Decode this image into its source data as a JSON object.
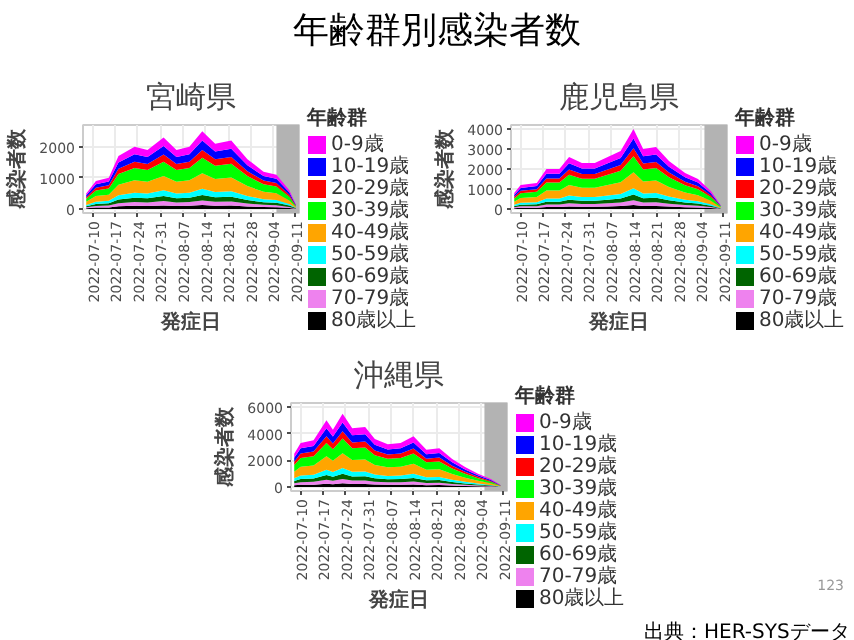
{
  "chart_data": [
    {
      "type": "other",
      "title": "年齢群別感染者数",
      "annotations": [
        "出典：HER-SYSデータ",
        "123"
      ]
    },
    {
      "type": "area",
      "stacked": true,
      "title": "宮崎県",
      "xlabel": "発症日",
      "ylabel": "感染者数",
      "legend_title": "年齢群",
      "legend": "right",
      "grid": true,
      "x": [
        "2022-07-08",
        "2022-07-11",
        "2022-07-15",
        "2022-07-18",
        "2022-07-23",
        "2022-07-27",
        "2022-08-01",
        "2022-08-05",
        "2022-08-09",
        "2022-08-13",
        "2022-08-17",
        "2022-08-22",
        "2022-08-27",
        "2022-09-01",
        "2022-09-05",
        "2022-09-09",
        "2022-09-11"
      ],
      "xlim": [
        "2022-07-07",
        "2022-09-12"
      ],
      "xticks": [
        "2022-07-10",
        "2022-07-17",
        "2022-07-24",
        "2022-07-31",
        "2022-08-07",
        "2022-08-14",
        "2022-08-21",
        "2022-08-28",
        "2022-09-04",
        "2022-09-11"
      ],
      "ylim": [
        -130,
        2700
      ],
      "yticks": [
        0,
        1000,
        2000
      ],
      "bands": [
        {
          "axis": "x",
          "from": "2022-09-05",
          "to": "2022-09-12",
          "color": "#b3b3b3"
        }
      ],
      "series": [
        {
          "name": "80歳以上",
          "color": "#000000",
          "values": [
            25,
            45,
            50,
            85,
            100,
            95,
            115,
            95,
            100,
            125,
            105,
            110,
            80,
            60,
            55,
            30,
            8
          ]
        },
        {
          "name": "70-79歳",
          "color": "#ee82ee",
          "values": [
            30,
            54,
            60,
            102,
            120,
            114,
            138,
            114,
            120,
            150,
            126,
            132,
            96,
            72,
            66,
            36,
            9
          ]
        },
        {
          "name": "60-69歳",
          "color": "#006400",
          "values": [
            35,
            63,
            70,
            119,
            140,
            133,
            161,
            133,
            140,
            175,
            147,
            154,
            112,
            84,
            77,
            42,
            10
          ]
        },
        {
          "name": "50-59歳",
          "color": "#00ffff",
          "values": [
            40,
            72,
            80,
            136,
            160,
            152,
            184,
            152,
            160,
            200,
            168,
            176,
            128,
            96,
            88,
            48,
            12
          ]
        },
        {
          "name": "40-49歳",
          "color": "#ffa500",
          "values": [
            100,
            180,
            200,
            340,
            400,
            380,
            460,
            380,
            400,
            500,
            420,
            440,
            320,
            240,
            220,
            120,
            30
          ]
        },
        {
          "name": "30-39歳",
          "color": "#00ff00",
          "values": [
            100,
            180,
            200,
            340,
            400,
            380,
            460,
            380,
            400,
            500,
            420,
            440,
            320,
            240,
            220,
            120,
            30
          ]
        },
        {
          "name": "20-29歳",
          "color": "#ff0000",
          "values": [
            50,
            90,
            100,
            170,
            200,
            190,
            230,
            190,
            200,
            250,
            210,
            220,
            160,
            120,
            110,
            60,
            15
          ]
        },
        {
          "name": "10-19歳",
          "color": "#0000ff",
          "values": [
            60,
            108,
            120,
            204,
            240,
            228,
            276,
            228,
            240,
            300,
            252,
            264,
            192,
            144,
            132,
            72,
            18
          ]
        },
        {
          "name": "0-9歳",
          "color": "#ff00ff",
          "values": [
            60,
            108,
            120,
            204,
            240,
            228,
            276,
            228,
            240,
            300,
            252,
            264,
            192,
            144,
            132,
            72,
            18
          ]
        }
      ]
    },
    {
      "type": "area",
      "stacked": true,
      "title": "鹿児島県",
      "xlabel": "発症日",
      "ylabel": "感染者数",
      "legend_title": "年齢群",
      "legend": "right",
      "grid": true,
      "x": [
        "2022-07-08",
        "2022-07-10",
        "2022-07-15",
        "2022-07-18",
        "2022-07-22",
        "2022-07-25",
        "2022-07-29",
        "2022-08-02",
        "2022-08-06",
        "2022-08-10",
        "2022-08-14",
        "2022-08-17",
        "2022-08-21",
        "2022-08-25",
        "2022-08-30",
        "2022-09-03",
        "2022-09-07",
        "2022-09-10"
      ],
      "xlim": [
        "2022-07-07",
        "2022-09-12"
      ],
      "xticks": [
        "2022-07-10",
        "2022-07-17",
        "2022-07-24",
        "2022-07-31",
        "2022-08-07",
        "2022-08-14",
        "2022-08-21",
        "2022-08-28",
        "2022-09-04",
        "2022-09-11"
      ],
      "ylim": [
        -200,
        4200
      ],
      "yticks": [
        0,
        1000,
        2000,
        3000,
        4000
      ],
      "bands": [
        {
          "axis": "x",
          "from": "2022-09-05",
          "to": "2022-09-12",
          "color": "#b3b3b3"
        }
      ],
      "series": [
        {
          "name": "80歳以上",
          "color": "#000000",
          "values": [
            40,
            60,
            65,
            100,
            100,
            130,
            115,
            115,
            130,
            145,
            200,
            150,
            155,
            120,
            90,
            75,
            45,
            10
          ]
        },
        {
          "name": "70-79歳",
          "color": "#ee82ee",
          "values": [
            48,
            72,
            78,
            120,
            120,
            156,
            138,
            138,
            156,
            174,
            240,
            180,
            186,
            144,
            108,
            90,
            54,
            12
          ]
        },
        {
          "name": "60-69歳",
          "color": "#006400",
          "values": [
            56,
            84,
            91,
            140,
            140,
            182,
            161,
            161,
            182,
            203,
            280,
            210,
            217,
            168,
            126,
            105,
            63,
            14
          ]
        },
        {
          "name": "50-59歳",
          "color": "#00ffff",
          "values": [
            64,
            96,
            104,
            160,
            160,
            208,
            184,
            184,
            208,
            232,
            320,
            240,
            248,
            192,
            144,
            120,
            72,
            16
          ]
        },
        {
          "name": "40-49歳",
          "color": "#ffa500",
          "values": [
            160,
            240,
            260,
            400,
            400,
            520,
            460,
            460,
            520,
            580,
            800,
            600,
            620,
            480,
            360,
            300,
            180,
            40
          ]
        },
        {
          "name": "30-39歳",
          "color": "#00ff00",
          "values": [
            160,
            240,
            260,
            400,
            400,
            520,
            460,
            460,
            520,
            580,
            800,
            600,
            620,
            480,
            360,
            300,
            180,
            40
          ]
        },
        {
          "name": "20-29歳",
          "color": "#ff0000",
          "values": [
            80,
            120,
            130,
            200,
            200,
            260,
            230,
            230,
            260,
            290,
            400,
            300,
            310,
            240,
            180,
            150,
            90,
            20
          ]
        },
        {
          "name": "10-19歳",
          "color": "#0000ff",
          "values": [
            96,
            144,
            156,
            240,
            240,
            312,
            276,
            276,
            312,
            348,
            480,
            360,
            372,
            288,
            216,
            180,
            108,
            24
          ]
        },
        {
          "name": "0-9歳",
          "color": "#ff00ff",
          "values": [
            96,
            144,
            156,
            240,
            240,
            312,
            276,
            276,
            312,
            348,
            480,
            360,
            372,
            288,
            216,
            180,
            108,
            24
          ]
        }
      ]
    },
    {
      "type": "area",
      "stacked": true,
      "title": "沖縄県",
      "xlabel": "発症日",
      "ylabel": "感染者数",
      "legend_title": "年齢群",
      "legend": "right",
      "grid": true,
      "x": [
        "2022-07-08",
        "2022-07-10",
        "2022-07-14",
        "2022-07-18",
        "2022-07-20",
        "2022-07-23",
        "2022-07-26",
        "2022-07-30",
        "2022-08-02",
        "2022-08-06",
        "2022-08-10",
        "2022-08-14",
        "2022-08-18",
        "2022-08-22",
        "2022-08-26",
        "2022-08-30",
        "2022-09-03",
        "2022-09-07",
        "2022-09-10"
      ],
      "xlim": [
        "2022-07-07",
        "2022-09-12"
      ],
      "xticks": [
        "2022-07-10",
        "2022-07-17",
        "2022-07-24",
        "2022-07-31",
        "2022-08-07",
        "2022-08-14",
        "2022-08-21",
        "2022-08-28",
        "2022-09-04",
        "2022-09-11"
      ],
      "ylim": [
        -300,
        6300
      ],
      "yticks": [
        0,
        2000,
        4000,
        6000
      ],
      "bands": [
        {
          "axis": "x",
          "from": "2022-09-05",
          "to": "2022-09-12",
          "color": "#b3b3b3"
        }
      ],
      "series": [
        {
          "name": "80歳以上",
          "color": "#000000",
          "values": [
            125,
            165,
            175,
            250,
            215,
            275,
            220,
            225,
            180,
            160,
            165,
            190,
            140,
            145,
            105,
            75,
            50,
            30,
            8
          ]
        },
        {
          "name": "70-79歳",
          "color": "#ee82ee",
          "values": [
            150,
            198,
            210,
            300,
            258,
            330,
            264,
            270,
            216,
            192,
            198,
            228,
            168,
            174,
            126,
            90,
            60,
            36,
            9
          ]
        },
        {
          "name": "60-69歳",
          "color": "#006400",
          "values": [
            175,
            231,
            245,
            350,
            301,
            385,
            308,
            315,
            252,
            224,
            231,
            266,
            196,
            203,
            147,
            105,
            70,
            42,
            10
          ]
        },
        {
          "name": "50-59歳",
          "color": "#00ffff",
          "values": [
            200,
            264,
            280,
            400,
            344,
            440,
            352,
            360,
            288,
            256,
            264,
            304,
            224,
            232,
            168,
            120,
            80,
            48,
            12
          ]
        },
        {
          "name": "40-49歳",
          "color": "#ffa500",
          "values": [
            500,
            660,
            700,
            1000,
            860,
            1100,
            880,
            900,
            720,
            640,
            660,
            760,
            560,
            580,
            420,
            300,
            200,
            120,
            30
          ]
        },
        {
          "name": "30-39歳",
          "color": "#00ff00",
          "values": [
            500,
            660,
            700,
            1000,
            860,
            1100,
            880,
            900,
            720,
            640,
            660,
            760,
            560,
            580,
            420,
            300,
            200,
            120,
            30
          ]
        },
        {
          "name": "20-29歳",
          "color": "#ff0000",
          "values": [
            250,
            330,
            350,
            500,
            430,
            550,
            440,
            450,
            360,
            320,
            330,
            380,
            280,
            290,
            210,
            150,
            100,
            60,
            15
          ]
        },
        {
          "name": "10-19歳",
          "color": "#0000ff",
          "values": [
            300,
            396,
            420,
            600,
            516,
            660,
            528,
            540,
            432,
            384,
            396,
            456,
            336,
            348,
            252,
            180,
            120,
            72,
            18
          ]
        },
        {
          "name": "0-9歳",
          "color": "#ff00ff",
          "values": [
            300,
            396,
            420,
            600,
            516,
            660,
            528,
            540,
            432,
            384,
            396,
            456,
            336,
            348,
            252,
            180,
            120,
            72,
            18
          ]
        }
      ]
    }
  ]
}
